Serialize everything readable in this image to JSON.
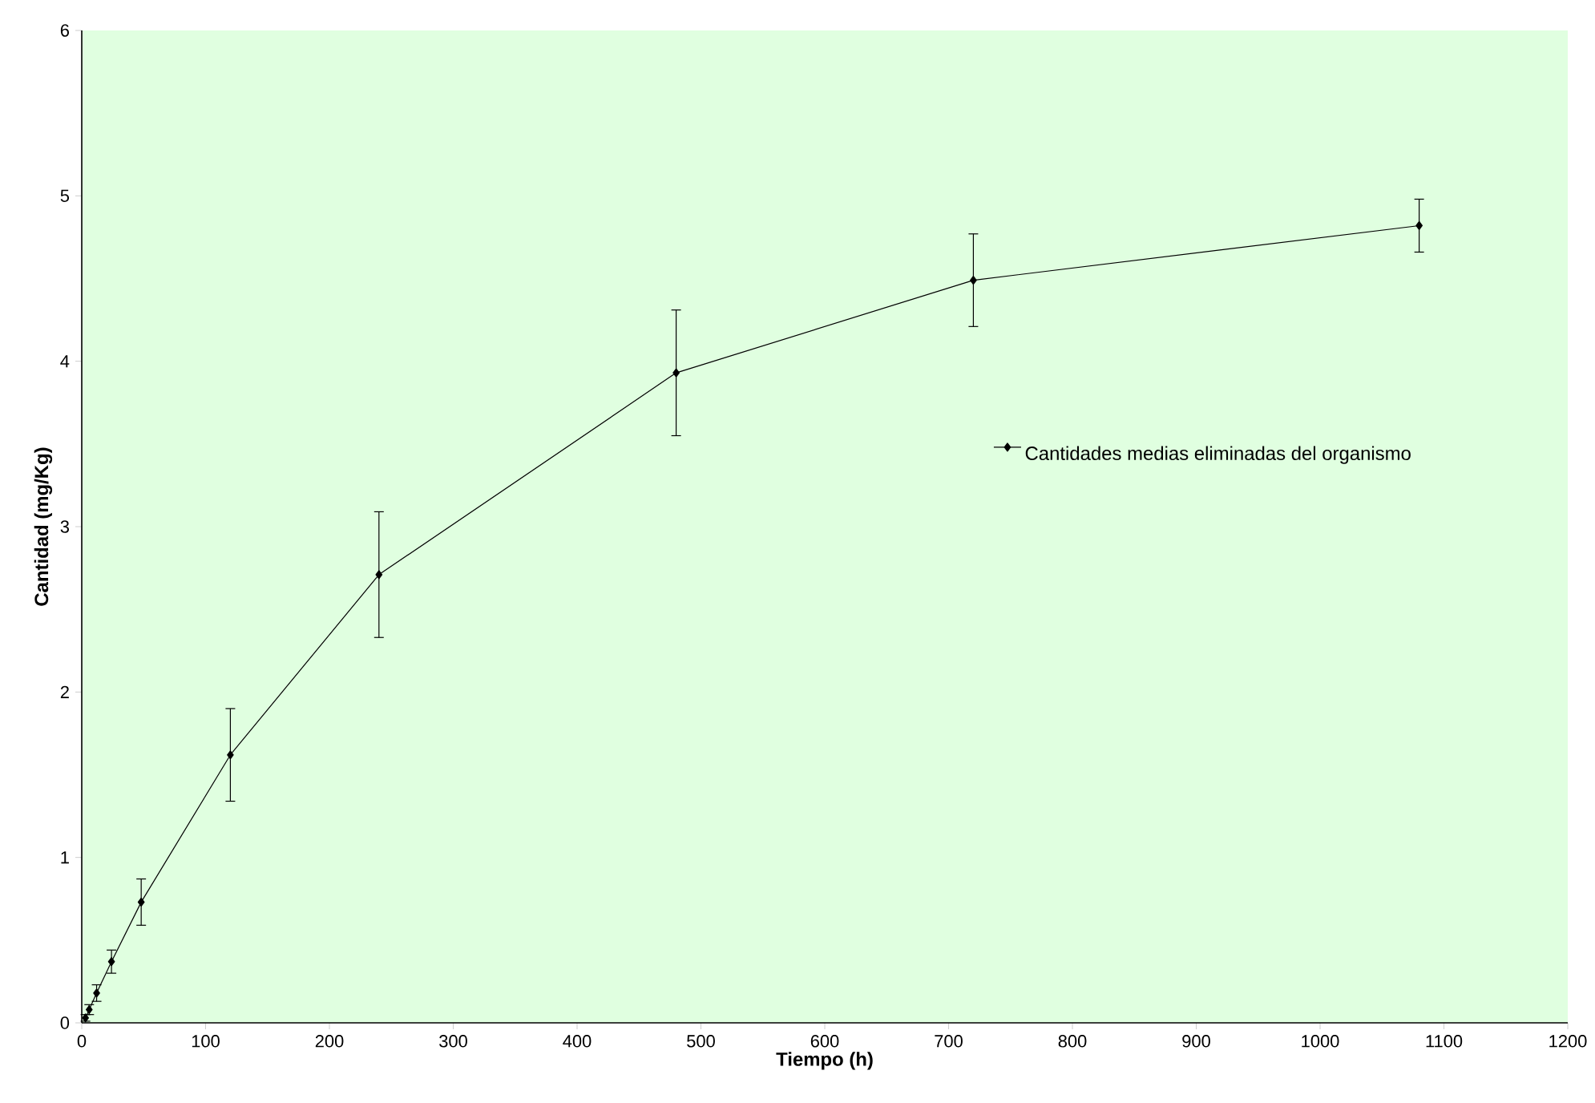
{
  "chart_data": {
    "type": "line",
    "xlabel": "Tiempo (h)",
    "ylabel": "Cantidad (mg/Kg)",
    "x": [
      3,
      6,
      12,
      24,
      48,
      120,
      240,
      480,
      720,
      1080
    ],
    "series": [
      {
        "name": "Cantidades medias eliminadas del organismo",
        "color": "#000000",
        "values": [
          0.03,
          0.08,
          0.18,
          0.37,
          0.73,
          1.62,
          2.71,
          3.93,
          4.49,
          4.82
        ],
        "errors": [
          0.02,
          0.03,
          0.05,
          0.07,
          0.14,
          0.28,
          0.38,
          0.38,
          0.28,
          0.16
        ]
      }
    ],
    "xlim": [
      0,
      1200
    ],
    "xticks": [
      0,
      100,
      200,
      300,
      400,
      500,
      600,
      700,
      800,
      900,
      1000,
      1100,
      1200
    ],
    "ylim": [
      0,
      6
    ],
    "yticks": [
      0,
      1,
      2,
      3,
      4,
      5,
      6
    ],
    "marker": "diamond",
    "line_style": "solid",
    "grid": false,
    "legend": "right"
  }
}
